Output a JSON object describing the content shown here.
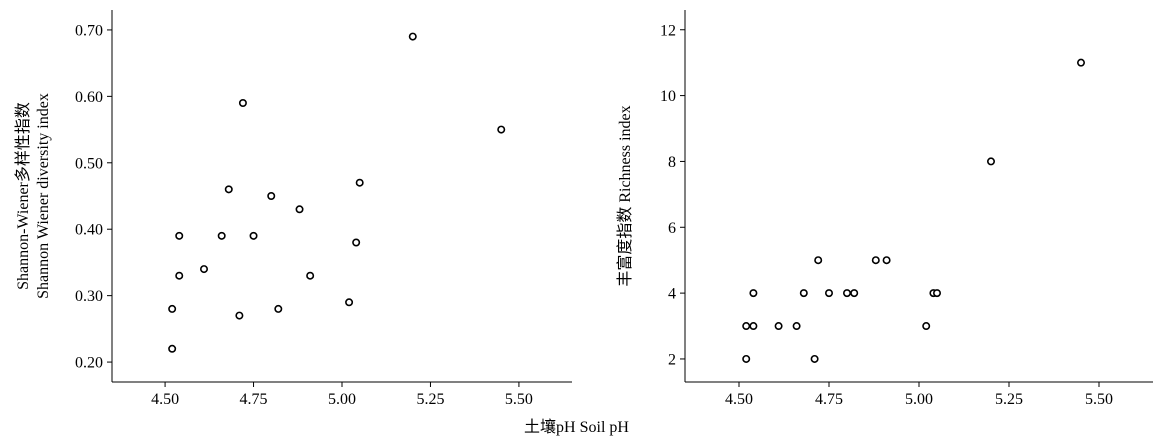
{
  "shared_xlabel": "土壤pH Soil pH",
  "chart_data": [
    {
      "type": "scatter",
      "title": "",
      "xlabel": "",
      "ylabel": [
        "Shannon-Wiener多样性指数",
        "Shannon Wiener diversity index"
      ],
      "xlim": [
        4.35,
        5.65
      ],
      "ylim": [
        0.17,
        0.73
      ],
      "x_ticks": [
        4.5,
        4.75,
        5.0,
        5.25,
        5.5
      ],
      "x_tick_labels": [
        "4.50",
        "4.75",
        "5.00",
        "5.25",
        "5.50"
      ],
      "y_ticks": [
        0.2,
        0.3,
        0.4,
        0.5,
        0.6,
        0.7
      ],
      "y_tick_labels": [
        "0.20",
        "0.30",
        "0.40",
        "0.50",
        "0.60",
        "0.70"
      ],
      "grid": false,
      "points": [
        {
          "x": 4.52,
          "y": 0.22
        },
        {
          "x": 4.52,
          "y": 0.28
        },
        {
          "x": 4.54,
          "y": 0.33
        },
        {
          "x": 4.54,
          "y": 0.39
        },
        {
          "x": 4.61,
          "y": 0.34
        },
        {
          "x": 4.66,
          "y": 0.39
        },
        {
          "x": 4.68,
          "y": 0.46
        },
        {
          "x": 4.71,
          "y": 0.27
        },
        {
          "x": 4.72,
          "y": 0.59
        },
        {
          "x": 4.75,
          "y": 0.39
        },
        {
          "x": 4.8,
          "y": 0.45
        },
        {
          "x": 4.82,
          "y": 0.28
        },
        {
          "x": 4.88,
          "y": 0.43
        },
        {
          "x": 4.91,
          "y": 0.33
        },
        {
          "x": 5.02,
          "y": 0.29
        },
        {
          "x": 5.04,
          "y": 0.38
        },
        {
          "x": 5.05,
          "y": 0.47
        },
        {
          "x": 5.2,
          "y": 0.69
        },
        {
          "x": 5.45,
          "y": 0.55
        }
      ]
    },
    {
      "type": "scatter",
      "title": "",
      "xlabel": "",
      "ylabel": [
        "丰富度指数 Richness index"
      ],
      "xlim": [
        4.35,
        5.65
      ],
      "ylim": [
        1.3,
        12.6
      ],
      "x_ticks": [
        4.5,
        4.75,
        5.0,
        5.25,
        5.5
      ],
      "x_tick_labels": [
        "4.50",
        "4.75",
        "5.00",
        "5.25",
        "5.50"
      ],
      "y_ticks": [
        2,
        4,
        6,
        8,
        10,
        12
      ],
      "y_tick_labels": [
        "2",
        "4",
        "6",
        "8",
        "10",
        "12"
      ],
      "grid": false,
      "points": [
        {
          "x": 4.52,
          "y": 2
        },
        {
          "x": 4.52,
          "y": 3
        },
        {
          "x": 4.54,
          "y": 3
        },
        {
          "x": 4.54,
          "y": 4
        },
        {
          "x": 4.61,
          "y": 3
        },
        {
          "x": 4.66,
          "y": 3
        },
        {
          "x": 4.68,
          "y": 4
        },
        {
          "x": 4.71,
          "y": 2
        },
        {
          "x": 4.72,
          "y": 5
        },
        {
          "x": 4.75,
          "y": 4
        },
        {
          "x": 4.8,
          "y": 4
        },
        {
          "x": 4.82,
          "y": 4
        },
        {
          "x": 4.88,
          "y": 5
        },
        {
          "x": 4.91,
          "y": 5
        },
        {
          "x": 5.02,
          "y": 3
        },
        {
          "x": 5.04,
          "y": 4
        },
        {
          "x": 5.05,
          "y": 4
        },
        {
          "x": 5.2,
          "y": 8
        },
        {
          "x": 5.45,
          "y": 11
        }
      ]
    }
  ]
}
